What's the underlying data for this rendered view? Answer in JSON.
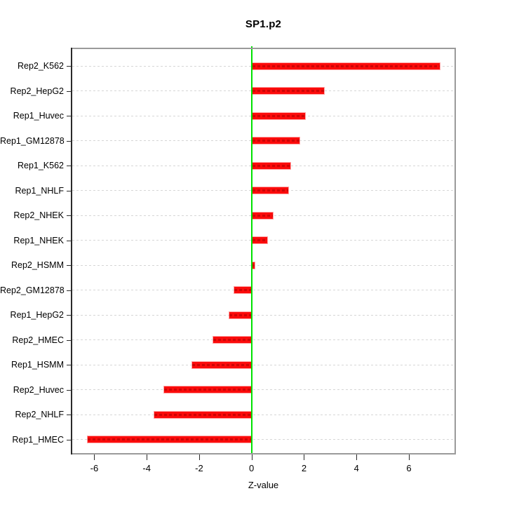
{
  "chart_data": {
    "type": "bar",
    "orientation": "horizontal",
    "title": "SP1.p2",
    "xlabel": "Z-value",
    "ylabel": "",
    "categories": [
      "Rep2_K562",
      "Rep2_HepG2",
      "Rep1_Huvec",
      "Rep1_GM12878",
      "Rep1_K562",
      "Rep1_NHLF",
      "Rep2_NHEK",
      "Rep1_NHEK",
      "Rep2_HSMM",
      "Rep2_GM12878",
      "Rep1_HepG2",
      "Rep2_HMEC",
      "Rep1_HSMM",
      "Rep2_Huvec",
      "Rep2_NHLF",
      "Rep1_HMEC"
    ],
    "values": [
      7.2,
      2.8,
      2.08,
      1.85,
      1.5,
      1.44,
      0.85,
      0.62,
      0.15,
      -0.7,
      -0.88,
      -1.5,
      -2.3,
      -3.35,
      -3.75,
      -6.28
    ],
    "x_ticks": [
      -6,
      -4,
      -2,
      0,
      2,
      4,
      6
    ],
    "xlim": [
      -6.84,
      7.74
    ],
    "grid": true,
    "grid_style": "dashed",
    "zero_line_x": 0,
    "legend_position": "none",
    "colors": {
      "bar_fill": "#fb0b0b",
      "bar_border": "#ffa3a3",
      "bar_dash_overlay": "#a50000",
      "zero_line": "#00e100",
      "gridline": "#d6d6d6",
      "box_border": "#9a9a9a",
      "axis_line": "#2a2a2a",
      "text": "#000000"
    }
  }
}
